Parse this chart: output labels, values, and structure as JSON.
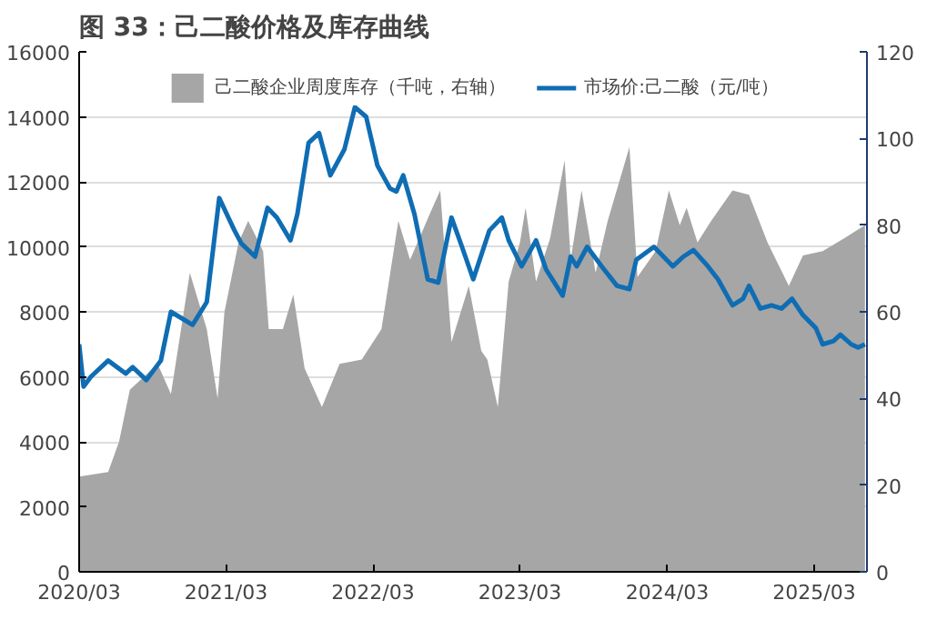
{
  "chart_data": {
    "type": "line",
    "title": "图 33：己二酸价格及库存曲线",
    "xlim": [
      "2020-03-01",
      "2025-07-10"
    ],
    "xticks": [
      {
        "value": "2020-03-01",
        "label": "2020/03"
      },
      {
        "value": "2021-03-01",
        "label": "2021/03"
      },
      {
        "value": "2022-03-01",
        "label": "2022/03"
      },
      {
        "value": "2023-03-01",
        "label": "2023/03"
      },
      {
        "value": "2024-03-01",
        "label": "2024/03"
      },
      {
        "value": "2025-03-01",
        "label": "2025/03"
      }
    ],
    "ylim": [
      0,
      16000
    ],
    "yticks": [
      0,
      2000,
      4000,
      6000,
      8000,
      10000,
      12000,
      14000,
      16000
    ],
    "y2lim": [
      0,
      120
    ],
    "y2ticks": [
      0,
      20,
      40,
      60,
      80,
      100,
      120
    ],
    "grid": "y",
    "legend": "top",
    "series": [
      {
        "name": "己二酸企业周度库存（千吨，右轴）",
        "type": "area",
        "axis": "y2",
        "color": "#a6a6a6",
        "x": [
          "2020-03-01",
          "2020-05-12",
          "2020-06-08",
          "2020-07-05",
          "2020-09-12",
          "2020-10-15",
          "2020-12-01",
          "2021-01-12",
          "2021-02-08",
          "2021-02-25",
          "2021-04-01",
          "2021-04-25",
          "2021-06-01",
          "2021-06-15",
          "2021-07-20",
          "2021-08-15",
          "2021-09-12",
          "2021-10-25",
          "2021-12-08",
          "2022-02-01",
          "2022-03-22",
          "2022-05-03",
          "2022-06-01",
          "2022-07-22",
          "2022-08-15",
          "2022-09-12",
          "2022-10-25",
          "2022-11-25",
          "2022-12-10",
          "2023-01-05",
          "2023-02-01",
          "2023-03-01",
          "2023-03-15",
          "2023-04-10",
          "2023-05-15",
          "2023-06-20",
          "2023-07-05",
          "2023-08-01",
          "2023-09-05",
          "2023-10-05",
          "2023-11-28",
          "2023-12-18",
          "2024-02-01",
          "2024-03-05",
          "2024-04-01",
          "2024-04-18",
          "2024-05-15",
          "2024-06-18",
          "2024-08-10",
          "2024-09-20",
          "2024-11-05",
          "2024-12-28",
          "2025-02-01",
          "2025-03-22",
          "2025-05-15",
          "2025-07-05"
        ],
        "values": [
          22,
          23,
          30,
          42,
          48,
          41,
          69,
          56,
          40,
          60,
          76,
          81,
          74,
          56,
          56,
          64,
          47,
          38,
          48,
          49,
          56,
          81,
          72,
          83,
          88,
          53,
          66,
          51,
          49,
          38,
          67,
          76,
          84,
          67,
          77,
          95,
          72,
          88,
          69,
          81,
          98,
          68,
          74,
          88,
          80,
          84,
          76,
          81,
          88,
          87,
          76,
          66,
          73,
          74,
          77,
          80
        ]
      },
      {
        "name": "市场价:己二酸（元/吨）",
        "color": "#0f6db3",
        "x": [
          "2020-03-01",
          "2020-03-12",
          "2020-03-30",
          "2020-05-12",
          "2020-06-25",
          "2020-07-12",
          "2020-08-15",
          "2020-09-20",
          "2020-10-15",
          "2020-12-08",
          "2021-01-12",
          "2021-02-12",
          "2021-03-22",
          "2021-04-08",
          "2021-05-12",
          "2021-06-12",
          "2021-07-05",
          "2021-08-08",
          "2021-08-25",
          "2021-09-22",
          "2021-10-18",
          "2021-11-15",
          "2021-12-20",
          "2022-01-15",
          "2022-02-12",
          "2022-03-12",
          "2022-04-12",
          "2022-04-28",
          "2022-05-15",
          "2022-06-12",
          "2022-07-15",
          "2022-08-10",
          "2022-09-12",
          "2022-10-08",
          "2022-11-05",
          "2022-12-15",
          "2023-01-15",
          "2023-02-01",
          "2023-03-05",
          "2023-04-10",
          "2023-05-05",
          "2023-06-15",
          "2023-07-05",
          "2023-07-20",
          "2023-08-15",
          "2023-09-20",
          "2023-10-28",
          "2023-11-28",
          "2023-12-15",
          "2024-01-28",
          "2024-03-15",
          "2024-04-10",
          "2024-05-05",
          "2024-06-10",
          "2024-07-05",
          "2024-08-10",
          "2024-09-05",
          "2024-09-20",
          "2024-10-18",
          "2024-11-15",
          "2024-12-10",
          "2025-01-05",
          "2025-02-01",
          "2025-03-05",
          "2025-03-22",
          "2025-04-18",
          "2025-05-05",
          "2025-06-01",
          "2025-06-18",
          "2025-07-05"
        ],
        "values": [
          7000,
          5700,
          6000,
          6500,
          6100,
          6300,
          5900,
          6500,
          8000,
          7600,
          8300,
          11500,
          10500,
          10100,
          9700,
          11200,
          10900,
          10200,
          11000,
          13200,
          13500,
          12200,
          13000,
          14300,
          14000,
          12500,
          11800,
          11700,
          12200,
          11000,
          9000,
          8900,
          10900,
          10000,
          9000,
          10500,
          10900,
          10200,
          9400,
          10200,
          9300,
          8500,
          9700,
          9400,
          10000,
          9400,
          8800,
          8700,
          9600,
          10000,
          9400,
          9700,
          9900,
          9400,
          9000,
          8200,
          8400,
          8800,
          8100,
          8200,
          8100,
          8400,
          7900,
          7500,
          7000,
          7100,
          7300,
          7000,
          6900,
          7000
        ]
      }
    ]
  }
}
